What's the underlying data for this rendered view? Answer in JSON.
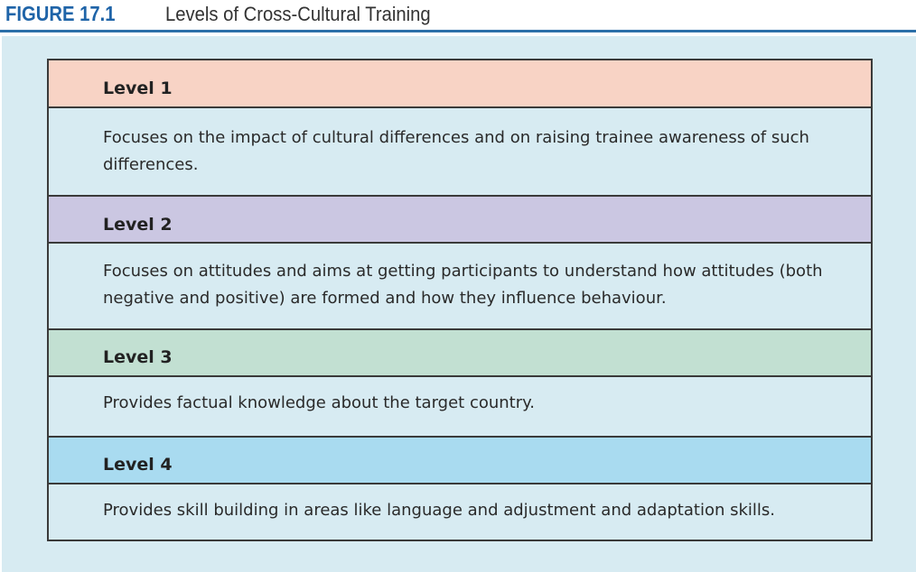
{
  "figure": {
    "number": "FIGURE 17.1",
    "title": "Levels of Cross-Cultural Training"
  },
  "colors": {
    "accent": "#1f64a8",
    "panel_bg": "#d7ebf2",
    "level1": "#f8d3c5",
    "level2": "#cbc7e2",
    "level3": "#c2e0d2",
    "level4": "#a9dbf0"
  },
  "levels": [
    {
      "label": "Level 1",
      "description": "Focuses on the impact of cultural differences and on raising trainee awareness of such differences."
    },
    {
      "label": "Level 2",
      "description": "Focuses on attitudes and aims at getting participants to understand how attitudes (both negative and positive) are formed and how they influence behaviour."
    },
    {
      "label": "Level 3",
      "description": "Provides factual knowledge about the target country."
    },
    {
      "label": "Level 4",
      "description": "Provides skill building in areas like language and adjustment and adaptation skills."
    }
  ]
}
